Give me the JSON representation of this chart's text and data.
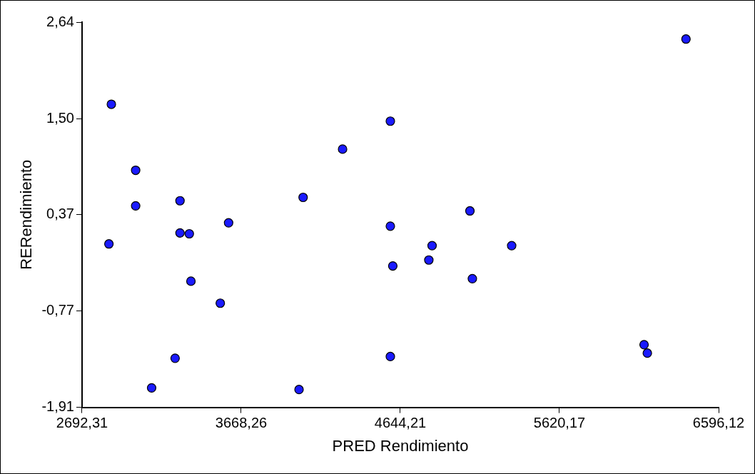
{
  "chart_data": {
    "type": "scatter",
    "xlabel": "PRED Rendimiento",
    "ylabel": "RERendimiento",
    "marker": "circle",
    "grid": false,
    "legend": false,
    "xlim": [
      2692.31,
      6596.12
    ],
    "ylim": [
      -1.91,
      2.64
    ],
    "xticks": [
      {
        "value": 2692.31,
        "label": "2692,31"
      },
      {
        "value": 3668.26,
        "label": "3668,26"
      },
      {
        "value": 4644.21,
        "label": "4644,21"
      },
      {
        "value": 5620.17,
        "label": "5620,17"
      },
      {
        "value": 6596.12,
        "label": "6596,12"
      }
    ],
    "yticks": [
      {
        "value": -1.91,
        "label": "-1,91"
      },
      {
        "value": -0.77,
        "label": "-0,77"
      },
      {
        "value": 0.37,
        "label": "0,37"
      },
      {
        "value": 1.5,
        "label": "1,50"
      },
      {
        "value": 2.64,
        "label": "2,64"
      }
    ],
    "series": [
      {
        "color": "#1a1aff",
        "x": [
          2872,
          2857,
          3021,
          3021,
          3119,
          3263,
          3293,
          3293,
          3350,
          3360,
          3540,
          3591,
          4023,
          4048,
          4290,
          4583,
          4583,
          4583,
          4598,
          4819,
          4839,
          5071,
          5086,
          5327,
          6139,
          6159,
          6396
        ],
        "values": [
          1.67,
          0.02,
          0.89,
          0.47,
          -1.68,
          -1.33,
          0.53,
          0.15,
          0.14,
          -0.42,
          -0.68,
          0.27,
          -1.7,
          0.57,
          1.14,
          1.47,
          0.23,
          -1.31,
          -0.24,
          -0.17,
          0.0,
          0.41,
          -0.39,
          0.0,
          -1.17,
          -1.27,
          2.44
        ]
      }
    ]
  }
}
